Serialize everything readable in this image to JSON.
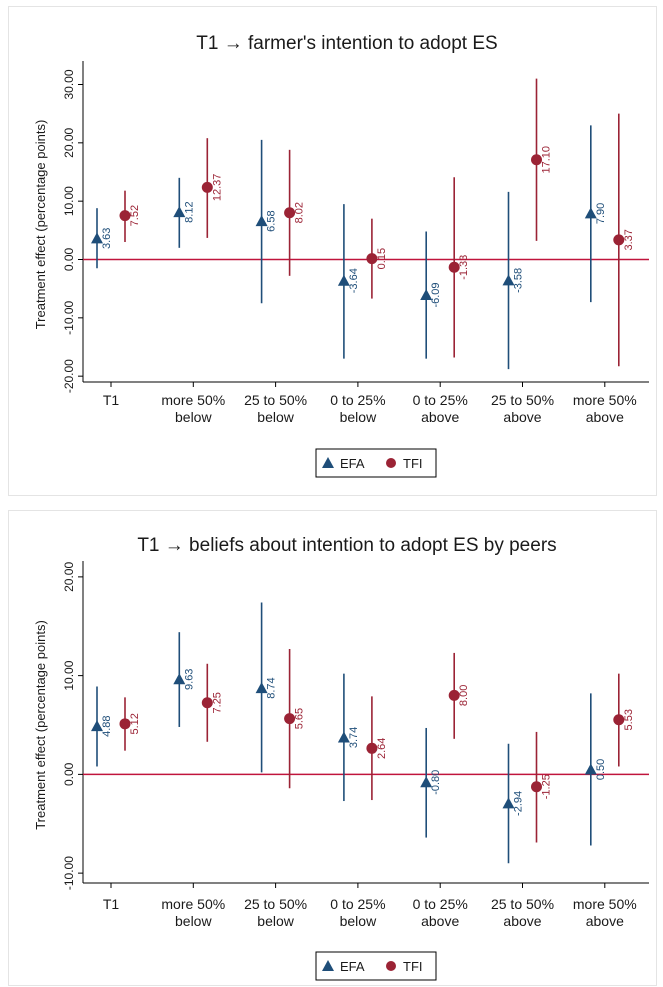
{
  "colors": {
    "efa": "#1f4e79",
    "tfi": "#9b2335",
    "zero_line": "#c0143c",
    "axis": "#000000",
    "text": "#1a1a1a"
  },
  "legend": {
    "efa_label": "EFA",
    "tfi_label": "TFI",
    "efa_marker": "triangle",
    "tfi_marker": "circle",
    "placement": "bottom-center"
  },
  "chart_data": [
    {
      "type": "scatter",
      "title": "T1 → farmer's intention to adopt  ES",
      "ylabel": "Treatment effect (percentage points)",
      "ylim": [
        -21,
        33
      ],
      "yticks": [
        -20,
        -10,
        0,
        10,
        20,
        30
      ],
      "ytick_labels": [
        "-20.00",
        "-10.00",
        "0.00",
        "10.00",
        "20.00",
        "30.00"
      ],
      "categories": [
        [
          "T1"
        ],
        [
          "more 50%",
          "below"
        ],
        [
          "25 to 50%",
          "below"
        ],
        [
          "0 to 25%",
          "below"
        ],
        [
          "0 to 25%",
          "above"
        ],
        [
          "25 to 50%",
          "above"
        ],
        [
          "more 50%",
          "above"
        ]
      ],
      "reference_line": 0,
      "grid": false,
      "series": [
        {
          "name": "EFA",
          "values": [
            3.63,
            8.12,
            6.58,
            -3.64,
            -6.09,
            -3.58,
            7.9
          ],
          "labels": [
            "3.63",
            "8.12",
            "6.58",
            "-3.64",
            "-6.09",
            "-3.58",
            "7.90"
          ],
          "ci_low": [
            -1.5,
            2.0,
            -7.5,
            -17.0,
            -17.0,
            -18.8,
            -7.3
          ],
          "ci_high": [
            8.8,
            14.0,
            20.5,
            9.5,
            4.8,
            11.6,
            23.0
          ]
        },
        {
          "name": "TFI",
          "values": [
            7.52,
            12.37,
            8.02,
            0.15,
            -1.33,
            17.1,
            3.37
          ],
          "labels": [
            "7.52",
            "12.37",
            "8.02",
            "0.15",
            "-1.33",
            "17.10",
            "3.37"
          ],
          "ci_low": [
            3.0,
            3.7,
            -2.8,
            -6.7,
            -16.8,
            3.2,
            -18.3
          ],
          "ci_high": [
            11.8,
            20.8,
            18.8,
            7.0,
            14.1,
            31.0,
            25.0
          ]
        }
      ]
    },
    {
      "type": "scatter",
      "title": "T1 → beliefs about intention to adopt ES by peers",
      "ylabel": "Treatment effect (percentage points)",
      "ylim": [
        -11,
        21
      ],
      "yticks": [
        -10,
        0,
        10,
        20
      ],
      "ytick_labels": [
        "-10.00",
        "0.00",
        "10.00",
        "20.00"
      ],
      "categories": [
        [
          "T1"
        ],
        [
          "more 50%",
          "below"
        ],
        [
          "25 to 50%",
          "below"
        ],
        [
          "0 to 25%",
          "below"
        ],
        [
          "0 to 25%",
          "above"
        ],
        [
          "25 to 50%",
          "above"
        ],
        [
          "more 50%",
          "above"
        ]
      ],
      "reference_line": 0,
      "grid": false,
      "series": [
        {
          "name": "EFA",
          "values": [
            4.88,
            9.63,
            8.74,
            3.74,
            -0.8,
            -2.94,
            0.5
          ],
          "labels": [
            "4.88",
            "9.63",
            "8.74",
            "3.74",
            "-0.80",
            "-2.94",
            "0.50"
          ],
          "ci_low": [
            0.8,
            4.8,
            0.2,
            -2.7,
            -6.4,
            -9.0,
            -7.2
          ],
          "ci_high": [
            8.9,
            14.4,
            17.4,
            10.2,
            4.7,
            3.1,
            8.2
          ]
        },
        {
          "name": "TFI",
          "values": [
            5.12,
            7.25,
            5.65,
            2.64,
            8.0,
            -1.25,
            5.53
          ],
          "labels": [
            "5.12",
            "7.25",
            "5.65",
            "2.64",
            "8.00",
            "-1.25",
            "5.53"
          ],
          "ci_low": [
            2.4,
            3.3,
            -1.4,
            -2.6,
            3.6,
            -6.9,
            0.8
          ],
          "ci_high": [
            7.8,
            11.2,
            12.7,
            7.9,
            12.3,
            4.3,
            10.2
          ]
        }
      ]
    }
  ]
}
